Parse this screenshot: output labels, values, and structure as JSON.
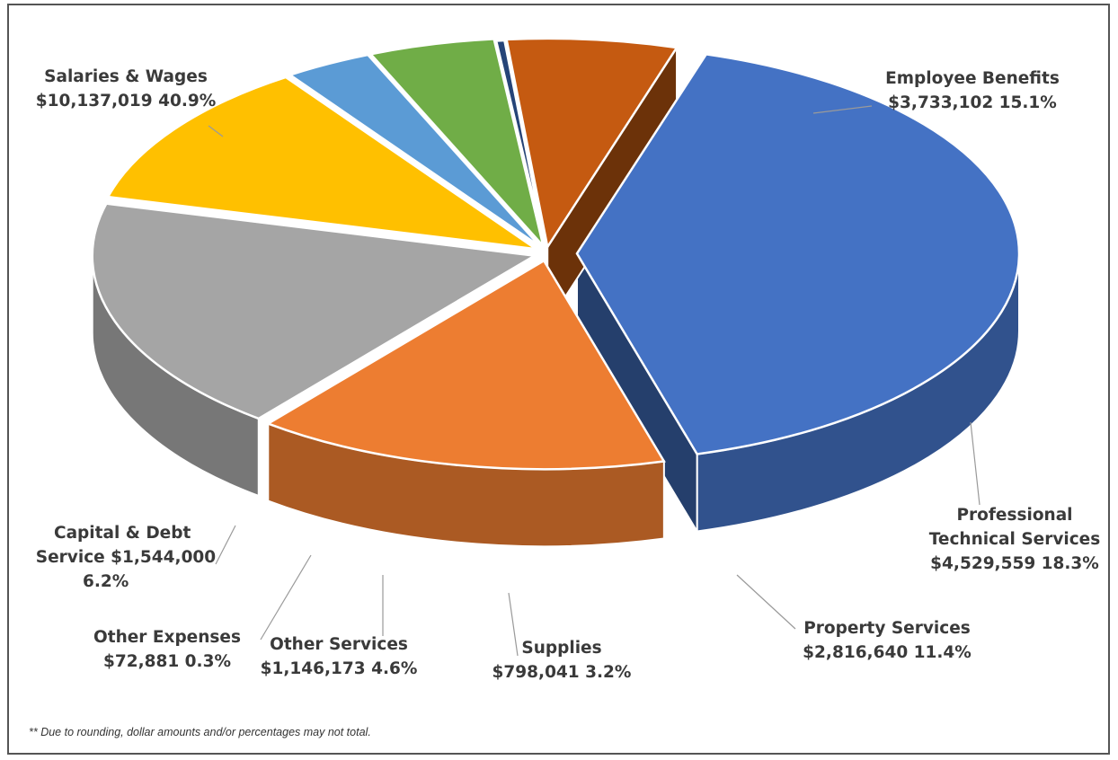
{
  "chart_data": {
    "type": "pie",
    "title": "",
    "slices": [
      {
        "name": "Salaries & Wages",
        "amount": "$10,137,019",
        "percent": "40.9%",
        "value": 40.9,
        "color": "#4472c4"
      },
      {
        "name": "Employee Benefits",
        "amount": "$3,733,102",
        "percent": "15.1%",
        "value": 15.1,
        "color": "#ed7d31"
      },
      {
        "name": "Professional Technical Services",
        "amount": "$4,529,559",
        "percent": "18.3%",
        "value": 18.3,
        "color": "#a5a5a5"
      },
      {
        "name": "Property Services",
        "amount": "$2,816,640",
        "percent": "11.4%",
        "value": 11.4,
        "color": "#ffc000"
      },
      {
        "name": "Supplies",
        "amount": "$798,041",
        "percent": "3.2%",
        "value": 3.2,
        "color": "#5b9bd5"
      },
      {
        "name": "Other Services",
        "amount": "$1,146,173",
        "percent": "4.6%",
        "value": 4.6,
        "color": "#70ad47"
      },
      {
        "name": "Other Expenses",
        "amount": "$72,881",
        "percent": "0.3%",
        "value": 0.3,
        "color": "#264478"
      },
      {
        "name": "Capital & Debt Service",
        "amount": "$1,544,000",
        "percent": "6.2%",
        "value": 6.2,
        "color": "#c55a11"
      }
    ],
    "style": "3d-exploded-pie",
    "legend": "none"
  },
  "labels": {
    "salaries_name": "Salaries & Wages",
    "salaries_value": "$10,137,019  40.9%",
    "benefits_name": "Employee Benefits",
    "benefits_value": "$3,733,102  15.1%",
    "prof_name_1": "Professional",
    "prof_name_2": "Technical Services",
    "prof_value": "$4,529,559  18.3%",
    "property_name": "Property Services",
    "property_value": "$2,816,640  11.4%",
    "supplies_name": "Supplies",
    "supplies_value": "$798,041  3.2%",
    "other_services_name": "Other Services",
    "other_services_value": "$1,146,173  4.6%",
    "other_expenses_name": "Other Expenses",
    "other_expenses_value": "$72,881  0.3%",
    "capital_name_1": "Capital & Debt",
    "capital_name_2": "Service  $1,544,000",
    "capital_value": "6.2%"
  },
  "footnote": "** Due to rounding, dollar amounts and/or percentages may not total."
}
